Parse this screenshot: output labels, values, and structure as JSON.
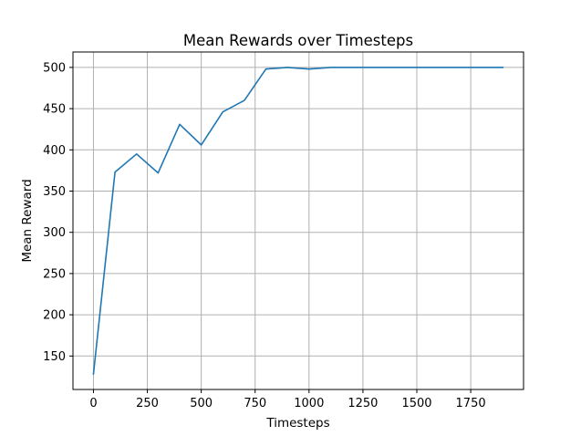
{
  "chart_data": {
    "type": "line",
    "title": "Mean Rewards over Timesteps",
    "xlabel": "Timesteps",
    "ylabel": "Mean Reward",
    "xlim": [
      -95,
      1995
    ],
    "ylim": [
      109.4,
      518.7
    ],
    "xticks": [
      0,
      250,
      500,
      750,
      1000,
      1250,
      1500,
      1750
    ],
    "xtick_labels": [
      "0",
      "250",
      "500",
      "750",
      "1000",
      "1250",
      "1500",
      "1750"
    ],
    "yticks": [
      150,
      200,
      250,
      300,
      350,
      400,
      450,
      500
    ],
    "ytick_labels": [
      "150",
      "200",
      "250",
      "300",
      "350",
      "400",
      "450",
      "500"
    ],
    "grid": true,
    "line_color": "#1f77b4",
    "series": [
      {
        "x": [
          0,
          100,
          200,
          300,
          400,
          500,
          600,
          700,
          800,
          900,
          1000,
          1100,
          1200,
          1300,
          1400,
          1500,
          1600,
          1700,
          1800,
          1900
        ],
        "values": [
          128,
          373,
          395,
          372,
          431,
          406,
          446,
          460,
          498,
          500,
          498,
          500,
          500,
          500,
          500,
          500,
          500,
          500,
          500,
          500
        ]
      }
    ]
  }
}
